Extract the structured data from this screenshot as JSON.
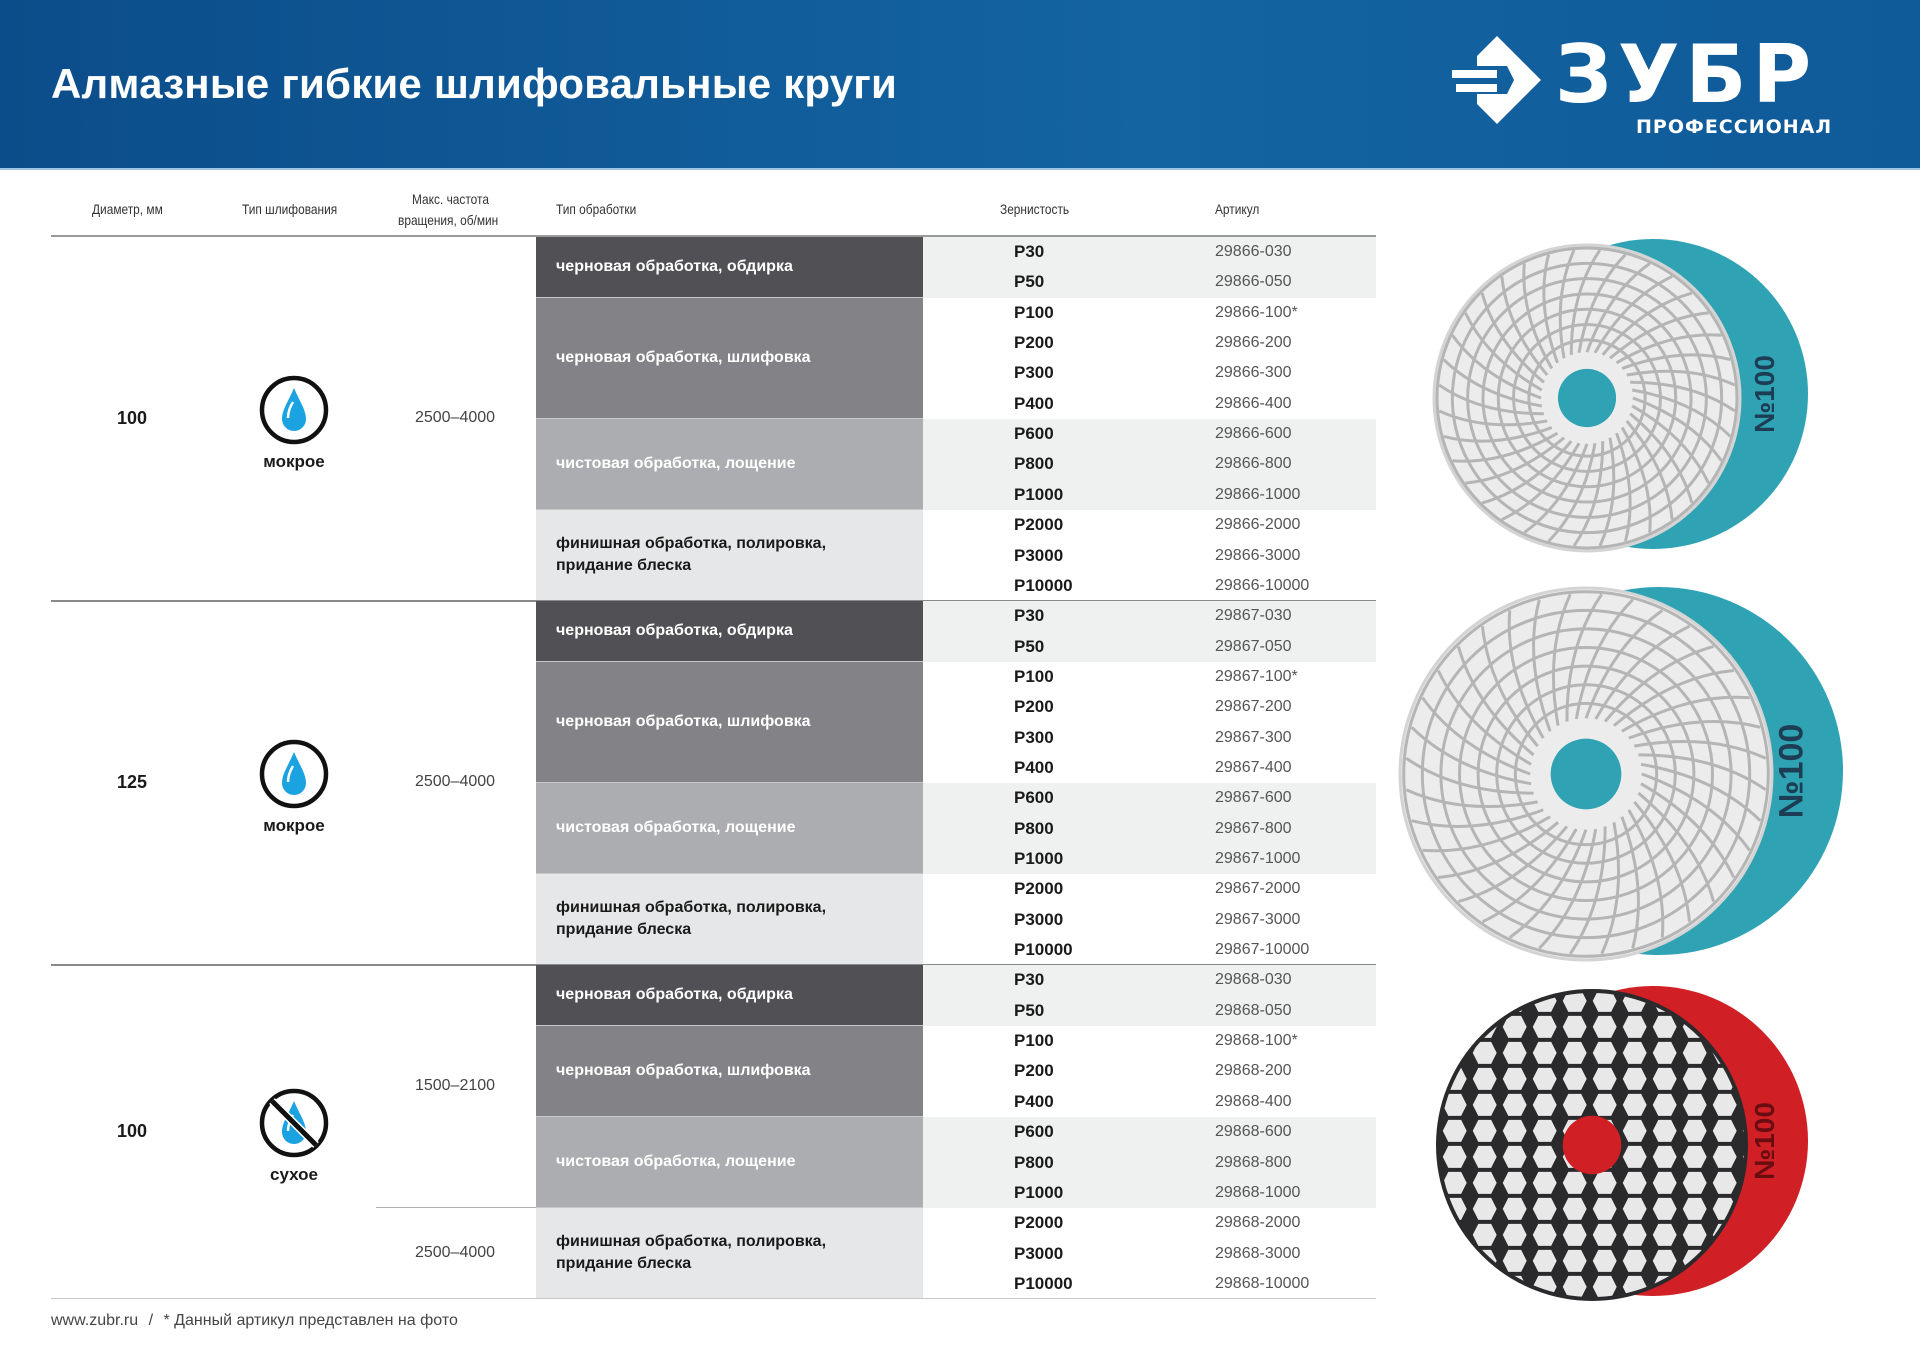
{
  "header": {
    "title": "Алмазные гибкие шлифовальные круги",
    "logo_brand": "ЗУБР",
    "logo_sub": "ПРОФЕССИОНАЛ",
    "bg_color": "#0b4d8a"
  },
  "columns": {
    "diameter": "Диаметр, мм",
    "grinding_type": "Тип шлифования",
    "speed_line1": "Макс. частота",
    "speed_line2": "вращения, об/мин",
    "processing": "Тип обработки",
    "grit": "Зернистость",
    "article": "Артикул"
  },
  "colors": {
    "dark": "#515155",
    "mid": "#838387",
    "light": "#acadb0",
    "lightest": "#e6e7e8",
    "water": "#1aa3e0",
    "teal": "#2fa3b3",
    "red": "#d11f26"
  },
  "sections": [
    {
      "diameter": "100",
      "grinding_type": "мокрое",
      "icon": "water-drop-icon",
      "speeds": [
        {
          "text": "2500–4000",
          "rows": 12
        }
      ],
      "groups": [
        {
          "label": "черновая обработка, обдирка",
          "items": [
            {
              "grit": "P30",
              "article": "29866-030"
            },
            {
              "grit": "P50",
              "article": "29866-050"
            }
          ]
        },
        {
          "label": "черновая обработка, шлифовка",
          "items": [
            {
              "grit": "P100",
              "article": "29866-100*"
            },
            {
              "grit": "P200",
              "article": "29866-200"
            },
            {
              "grit": "P300",
              "article": "29866-300"
            },
            {
              "grit": "P400",
              "article": "29866-400"
            }
          ]
        },
        {
          "label": "чистовая обработка, лощение",
          "items": [
            {
              "grit": "P600",
              "article": "29866-600"
            },
            {
              "grit": "P800",
              "article": "29866-800"
            },
            {
              "grit": "P1000",
              "article": "29866-1000"
            }
          ]
        },
        {
          "label": "финишная обработка, полировка, придание блеска",
          "items": [
            {
              "grit": "P2000",
              "article": "29866-2000"
            },
            {
              "grit": "P3000",
              "article": "29866-3000"
            },
            {
              "grit": "P10000",
              "article": "29866-10000"
            }
          ]
        }
      ]
    },
    {
      "diameter": "125",
      "grinding_type": "мокрое",
      "icon": "water-drop-icon",
      "speeds": [
        {
          "text": "2500–4000",
          "rows": 12
        }
      ],
      "groups": [
        {
          "label": "черновая обработка, обдирка",
          "items": [
            {
              "grit": "P30",
              "article": "29867-030"
            },
            {
              "grit": "P50",
              "article": "29867-050"
            }
          ]
        },
        {
          "label": "черновая обработка, шлифовка",
          "items": [
            {
              "grit": "P100",
              "article": "29867-100*"
            },
            {
              "grit": "P200",
              "article": "29867-200"
            },
            {
              "grit": "P300",
              "article": "29867-300"
            },
            {
              "grit": "P400",
              "article": "29867-400"
            }
          ]
        },
        {
          "label": "чистовая обработка, лощение",
          "items": [
            {
              "grit": "P600",
              "article": "29867-600"
            },
            {
              "grit": "P800",
              "article": "29867-800"
            },
            {
              "grit": "P1000",
              "article": "29867-1000"
            }
          ]
        },
        {
          "label": "финишная обработка, полировка, придание блеска",
          "items": [
            {
              "grit": "P2000",
              "article": "29867-2000"
            },
            {
              "grit": "P3000",
              "article": "29867-3000"
            },
            {
              "grit": "P10000",
              "article": "29867-10000"
            }
          ]
        }
      ]
    },
    {
      "diameter": "100",
      "grinding_type": "сухое",
      "icon": "no-water-icon",
      "speeds": [
        {
          "text": "1500–2100",
          "rows": 8
        },
        {
          "text": "2500–4000",
          "rows": 3
        }
      ],
      "groups": [
        {
          "label": "черновая обработка, обдирка",
          "items": [
            {
              "grit": "P30",
              "article": "29868-030"
            },
            {
              "grit": "P50",
              "article": "29868-050"
            }
          ]
        },
        {
          "label": "черновая обработка, шлифовка",
          "items": [
            {
              "grit": "P100",
              "article": "29868-100*"
            },
            {
              "grit": "P200",
              "article": "29868-200"
            },
            {
              "grit": "P400",
              "article": "29868-400"
            }
          ]
        },
        {
          "label": "чистовая обработка, лощение",
          "items": [
            {
              "grit": "P600",
              "article": "29868-600"
            },
            {
              "grit": "P800",
              "article": "29868-800"
            },
            {
              "grit": "P1000",
              "article": "29868-1000"
            }
          ]
        },
        {
          "label": "финишная обработка, полировка, придание блеска",
          "items": [
            {
              "grit": "P2000",
              "article": "29868-2000"
            },
            {
              "grit": "P3000",
              "article": "29868-3000"
            },
            {
              "grit": "P10000",
              "article": "29868-10000"
            }
          ]
        }
      ]
    }
  ],
  "product_images": [
    {
      "label": "№100"
    },
    {
      "label": "№100"
    },
    {
      "label": "№100"
    }
  ],
  "footer": {
    "site": "www.zubr.ru",
    "separator": "/",
    "note": "* Данный артикул представлен на фото"
  }
}
